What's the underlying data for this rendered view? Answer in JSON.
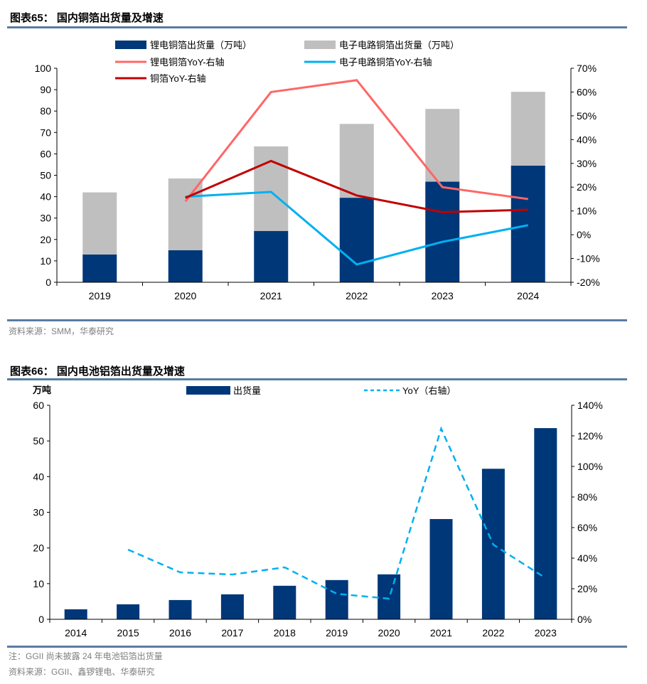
{
  "figures": [
    {
      "title": "图表65：  国内铜箔出货量及增速",
      "source": "资料来源：SMM，华泰研究"
    },
    {
      "title": "图表66：  国内电池铝箔出货量及增速",
      "note": "注：GGII 尚未披露 24 年电池铝箔出货量",
      "source": "资料来源：GGII、鑫锣锂电、华泰研究"
    }
  ],
  "chart_data": [
    {
      "type": "bar",
      "stacked": true,
      "title": "国内铜箔出货量及增速",
      "categories": [
        "2019",
        "2020",
        "2021",
        "2022",
        "2023",
        "2024"
      ],
      "series": [
        {
          "name": "锂电铜箔出货量（万吨）",
          "kind": "bar",
          "axis": "left",
          "color": "#003778",
          "values": [
            13,
            15,
            24,
            39.5,
            47,
            54.5
          ]
        },
        {
          "name": "电子电路铜箔出货量（万吨）",
          "kind": "bar",
          "axis": "left",
          "color": "#bfbfbf",
          "values": [
            29,
            33.5,
            39.5,
            34.5,
            34,
            34.5
          ]
        },
        {
          "name": "锂电铜箔YoY-右轴",
          "kind": "line",
          "axis": "right",
          "color": "#ff6666",
          "values": [
            null,
            14,
            60,
            65,
            20,
            15
          ]
        },
        {
          "name": "电子电路铜箔YoY-右轴",
          "kind": "line",
          "axis": "right",
          "color": "#00b0f0",
          "values": [
            null,
            16,
            18,
            -12.5,
            -3,
            4
          ]
        },
        {
          "name": "铜箔YoY-右轴",
          "kind": "line",
          "axis": "right",
          "color": "#c00000",
          "values": [
            null,
            15.5,
            31,
            16.5,
            9.5,
            10.5
          ]
        }
      ],
      "left_axis": {
        "min": 0,
        "max": 100,
        "ticks": [
          "0",
          "10",
          "20",
          "30",
          "40",
          "50",
          "60",
          "70",
          "80",
          "90",
          "100"
        ]
      },
      "right_axis": {
        "min": -20,
        "max": 70,
        "ticks": [
          "-20%",
          "-10%",
          "0%",
          "10%",
          "20%",
          "30%",
          "40%",
          "50%",
          "60%",
          "70%"
        ]
      },
      "legend": {
        "position": "top",
        "labels": [
          "锂电铜箔出货量（万吨）",
          "电子电路铜箔出货量（万吨）",
          "锂电铜箔YoY-右轴",
          "电子电路铜箔YoY-右轴",
          "铜箔YoY-右轴"
        ]
      },
      "grid": false
    },
    {
      "type": "bar",
      "title": "国内电池铝箔出货量及增速",
      "unit_label": "万吨",
      "categories": [
        "2014",
        "2015",
        "2016",
        "2017",
        "2018",
        "2019",
        "2020",
        "2021",
        "2022",
        "2023"
      ],
      "series": [
        {
          "name": "出货量",
          "kind": "bar",
          "axis": "left",
          "color": "#003778",
          "values": [
            2.8,
            4.2,
            5.4,
            7.0,
            9.4,
            11.0,
            12.6,
            28.1,
            42.2,
            53.6
          ]
        },
        {
          "name": "YoY（右轴）",
          "kind": "dashed-line",
          "axis": "right",
          "color": "#00b0f0",
          "values": [
            null,
            45.6,
            30.7,
            29.3,
            34,
            16.7,
            13.5,
            124.7,
            48.8,
            27
          ]
        }
      ],
      "left_axis": {
        "min": 0,
        "max": 60,
        "ticks": [
          "0",
          "10",
          "20",
          "30",
          "40",
          "50",
          "60"
        ]
      },
      "right_axis": {
        "min": 0,
        "max": 140,
        "ticks": [
          "0%",
          "20%",
          "40%",
          "60%",
          "80%",
          "100%",
          "120%",
          "140%"
        ]
      },
      "legend": {
        "position": "top",
        "labels": [
          "出货量",
          "YoY（右轴）"
        ]
      },
      "grid": false
    }
  ]
}
